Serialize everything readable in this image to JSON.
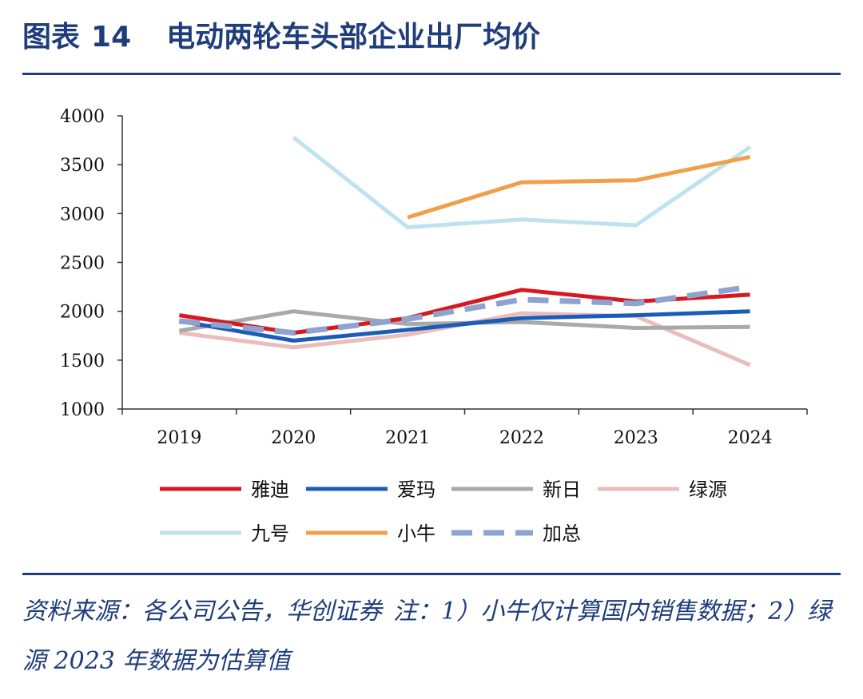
{
  "title": {
    "label": "图表",
    "number": "14",
    "text": "电动两轮车头部企业出厂均价"
  },
  "source": {
    "text": "资料来源：各公司公告，华创证券",
    "note": "注：1）小牛仅计算国内销售数据；2）绿源 2023 年数据为估算值"
  },
  "chart_data": {
    "type": "line",
    "categories": [
      "2019",
      "2020",
      "2021",
      "2022",
      "2023",
      "2024"
    ],
    "ylim": [
      1000,
      4000
    ],
    "yticks": [
      "1000",
      "1500",
      "2000",
      "2500",
      "3000",
      "3500",
      "4000"
    ],
    "grid": false,
    "legend_position": "bottom",
    "series": [
      {
        "name": "雅迪",
        "color": "#d7191f",
        "dashed": false,
        "values": [
          1960,
          1780,
          1930,
          2220,
          2100,
          2170
        ]
      },
      {
        "name": "爱玛",
        "color": "#1a5cb8",
        "dashed": false,
        "values": [
          1900,
          1700,
          1810,
          1930,
          1960,
          2000
        ]
      },
      {
        "name": "新日",
        "color": "#a9a9a9",
        "dashed": false,
        "values": [
          1800,
          2000,
          1870,
          1890,
          1830,
          1840
        ]
      },
      {
        "name": "绿源",
        "color": "#ebbcbc",
        "dashed": false,
        "values": [
          1780,
          1630,
          1760,
          1980,
          1950,
          1450
        ]
      },
      {
        "name": "九号",
        "color": "#bfe3ee",
        "dashed": false,
        "values": [
          null,
          3780,
          2860,
          2940,
          2880,
          3680
        ]
      },
      {
        "name": "小牛",
        "color": "#f0a04b",
        "dashed": false,
        "values": [
          null,
          null,
          2960,
          3320,
          3340,
          3580
        ]
      },
      {
        "name": "加总",
        "color": "#8ea3cf",
        "dashed": true,
        "values": [
          1900,
          1780,
          1920,
          2120,
          2080,
          2250
        ]
      }
    ]
  }
}
